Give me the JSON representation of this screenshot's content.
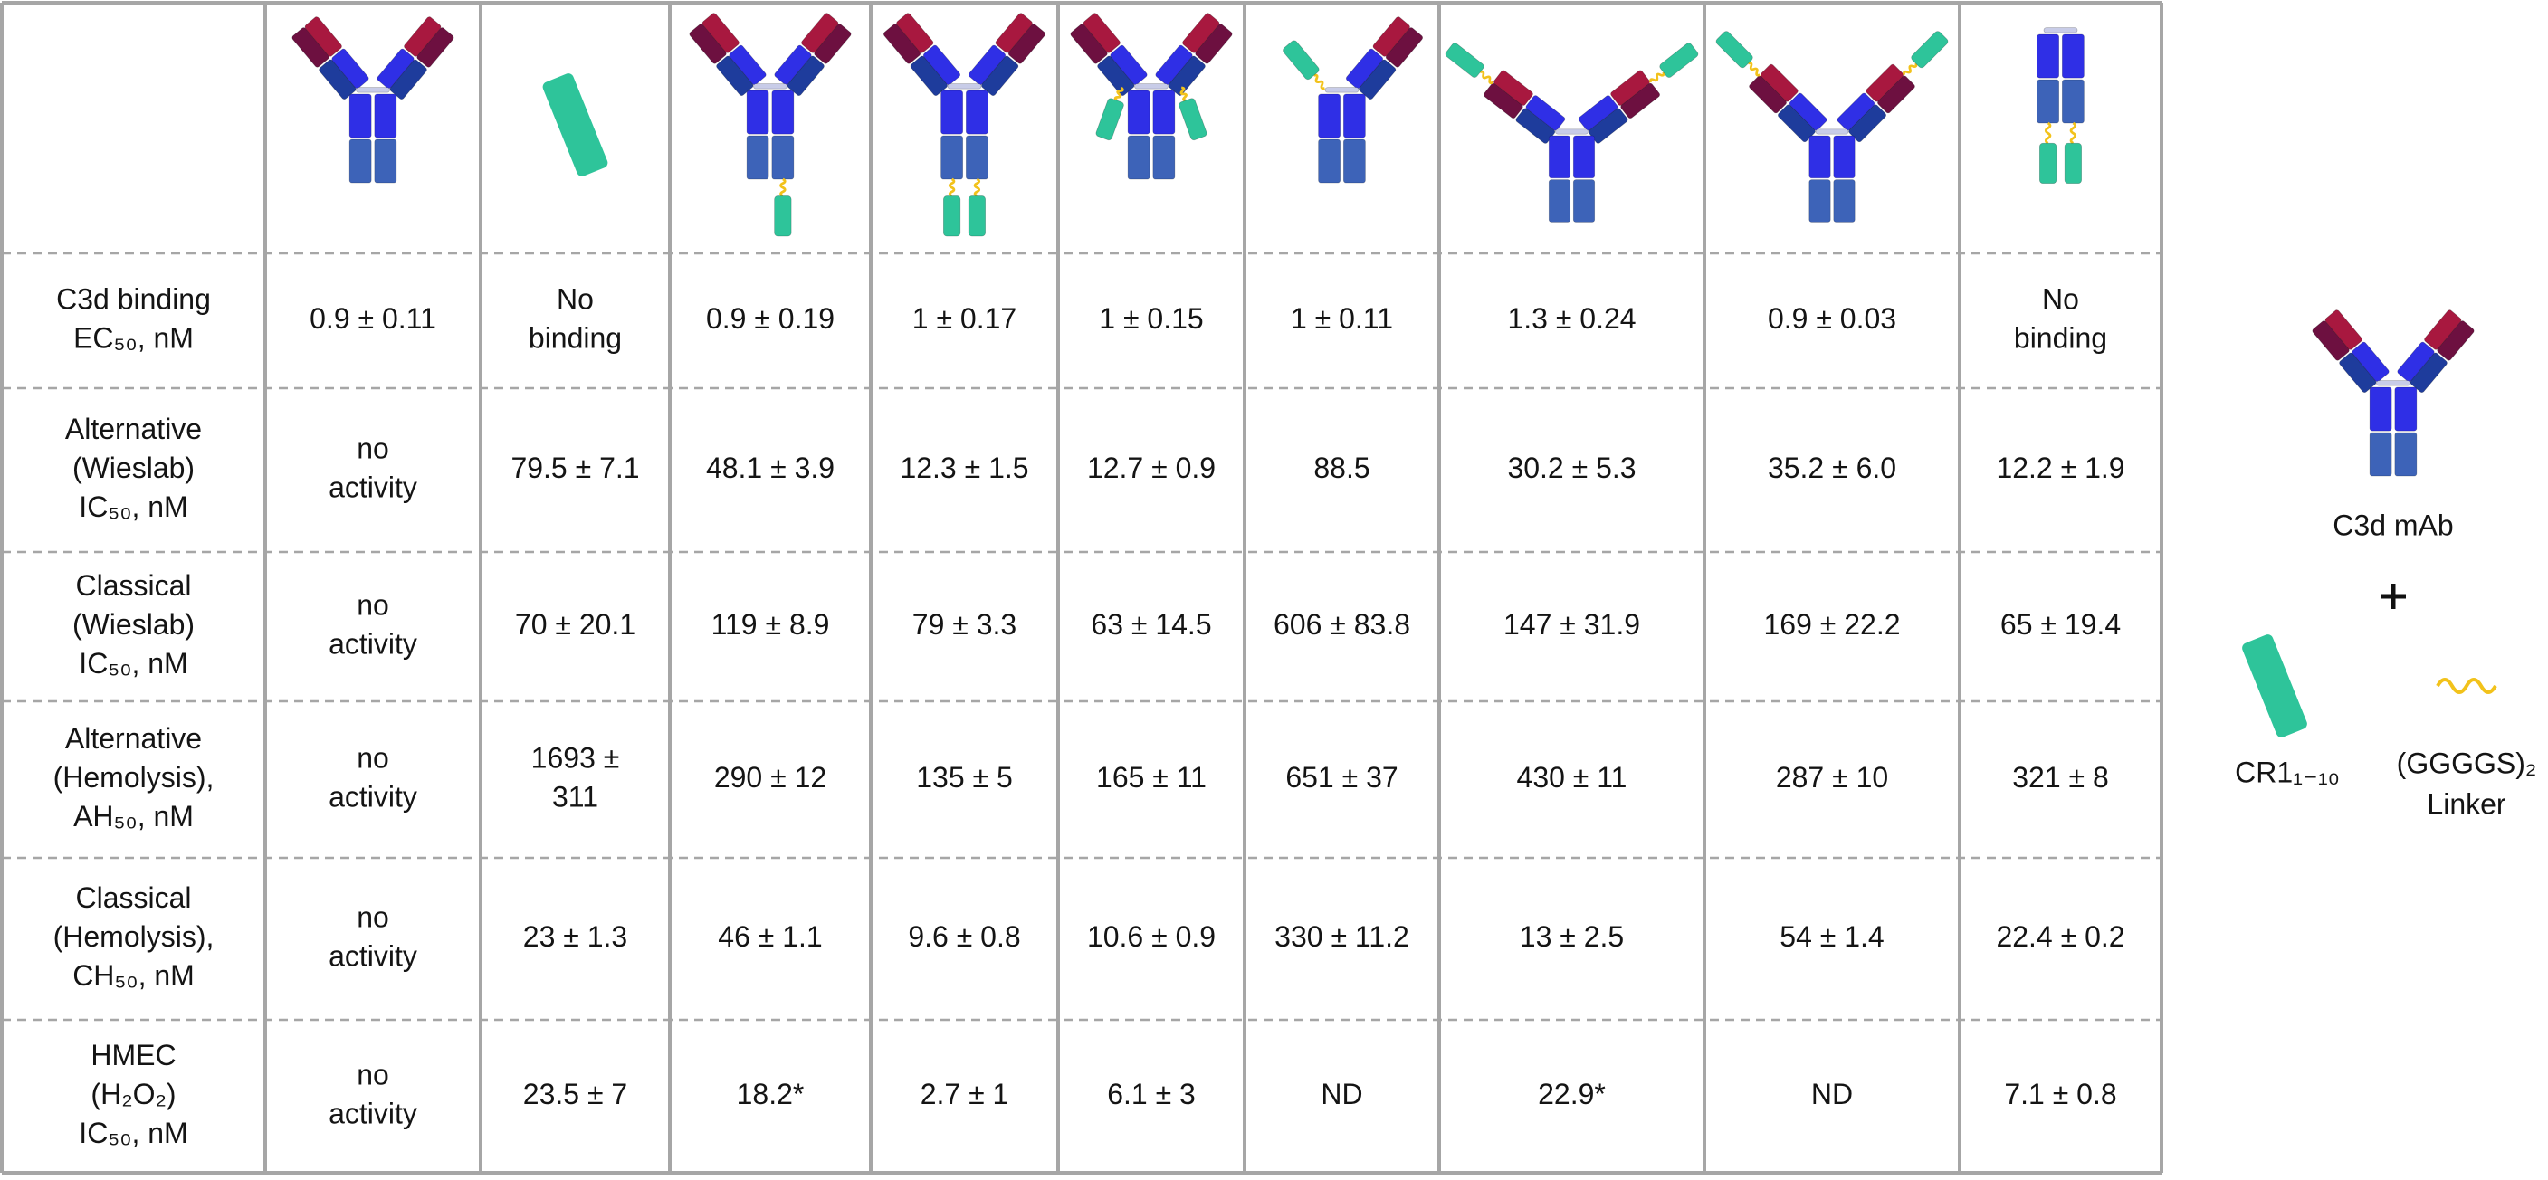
{
  "table": {
    "rows": [
      {
        "label": [
          "C3d binding",
          "EC₅₀, nM"
        ],
        "cells": [
          [
            "0.9 ± 0.11"
          ],
          [
            "No",
            "binding"
          ],
          [
            "0.9 ± 0.19"
          ],
          [
            "1 ± 0.17"
          ],
          [
            "1 ± 0.15"
          ],
          [
            "1 ± 0.11"
          ],
          [
            "1.3 ± 0.24"
          ],
          [
            "0.9 ± 0.03"
          ],
          [
            "No",
            "binding"
          ]
        ]
      },
      {
        "label": [
          "Alternative",
          "(Wieslab)",
          "IC₅₀, nM"
        ],
        "cells": [
          [
            "no",
            "activity"
          ],
          [
            "79.5 ± 7.1"
          ],
          [
            "48.1 ± 3.9"
          ],
          [
            "12.3 ± 1.5"
          ],
          [
            "12.7 ± 0.9"
          ],
          [
            "88.5"
          ],
          [
            "30.2 ± 5.3"
          ],
          [
            "35.2 ± 6.0"
          ],
          [
            "12.2 ± 1.9"
          ]
        ]
      },
      {
        "label": [
          "Classical",
          "(Wieslab)",
          "IC₅₀, nM"
        ],
        "cells": [
          [
            "no",
            "activity"
          ],
          [
            "70 ± 20.1"
          ],
          [
            "119 ± 8.9"
          ],
          [
            "79 ± 3.3"
          ],
          [
            "63 ± 14.5"
          ],
          [
            "606 ± 83.8"
          ],
          [
            "147 ± 31.9"
          ],
          [
            "169 ± 22.2"
          ],
          [
            "65 ± 19.4"
          ]
        ]
      },
      {
        "label": [
          "Alternative",
          "(Hemolysis),",
          "AH₅₀, nM"
        ],
        "cells": [
          [
            "no",
            "activity"
          ],
          [
            "1693 ±",
            "311"
          ],
          [
            "290 ± 12"
          ],
          [
            "135 ± 5"
          ],
          [
            "165 ± 11"
          ],
          [
            "651 ± 37"
          ],
          [
            "430 ± 11"
          ],
          [
            "287 ± 10"
          ],
          [
            "321 ± 8"
          ]
        ]
      },
      {
        "label": [
          "Classical",
          "(Hemolysis),",
          "CH₅₀, nM"
        ],
        "cells": [
          [
            "no",
            "activity"
          ],
          [
            "23 ± 1.3"
          ],
          [
            "46 ± 1.1"
          ],
          [
            "9.6 ± 0.8"
          ],
          [
            "10.6 ± 0.9"
          ],
          [
            "330 ± 11.2"
          ],
          [
            "13 ± 2.5"
          ],
          [
            "54 ± 1.4"
          ],
          [
            "22.4 ± 0.2"
          ]
        ]
      },
      {
        "label": [
          "HMEC",
          "(H₂O₂)",
          "IC₅₀, nM"
        ],
        "cells": [
          [
            "no",
            "activity"
          ],
          [
            "23.5 ± 7"
          ],
          [
            "18.2*"
          ],
          [
            "2.7 ± 1"
          ],
          [
            "6.1 ± 3"
          ],
          [
            "ND"
          ],
          [
            "22.9*"
          ],
          [
            "ND"
          ],
          [
            "7.1 ± 0.8"
          ]
        ]
      }
    ]
  },
  "legend": {
    "antibody": "C3d mAb",
    "cr1": "CR1₁₋₁₀",
    "linker": [
      "(GGGGS)₂",
      "Linker"
    ]
  }
}
